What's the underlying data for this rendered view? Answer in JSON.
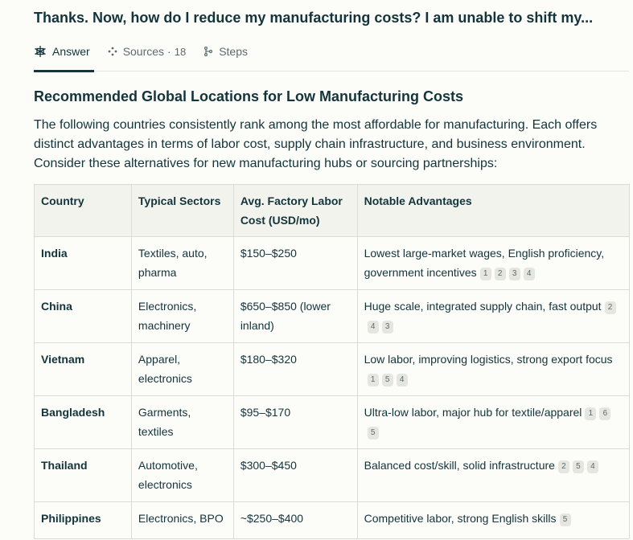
{
  "question": "Thanks. Now, how do I reduce my manufacturing costs? I am unable to shift my...",
  "tabs": {
    "answer": "Answer",
    "sources": "Sources",
    "sources_count": "18",
    "steps": "Steps"
  },
  "heading": "Recommended Global Locations for Low Manufacturing Costs",
  "intro": "The following countries consistently rank among the most affordable for manufacturing. Each offers distinct advantages in terms of labor cost, supply chain infrastructure, and business environment. Consider these alternatives for new manufacturing hubs or sourcing partnerships:",
  "table": {
    "headers": [
      "Country",
      "Typical Sectors",
      "Avg. Factory Labor Cost (USD/mo)",
      "Notable Advantages"
    ],
    "rows": [
      {
        "country": "India",
        "sectors": "Textiles, auto, pharma",
        "cost": "$150–$250",
        "advantages": "Lowest large-market wages, English proficiency, government incentives",
        "cites": [
          "1",
          "2",
          "3",
          "4"
        ]
      },
      {
        "country": "China",
        "sectors": "Electronics, machinery",
        "cost": "$650–$850 (lower inland)",
        "advantages": "Huge scale, integrated supply chain, fast output",
        "cites": [
          "2",
          "4",
          "3"
        ]
      },
      {
        "country": "Vietnam",
        "sectors": "Apparel, electronics",
        "cost": "$180–$320",
        "advantages": "Low labor, improving logistics, strong export focus",
        "cites": [
          "1",
          "5",
          "4"
        ]
      },
      {
        "country": "Bangladesh",
        "sectors": "Garments, textiles",
        "cost": "$95–$170",
        "advantages": "Ultra-low labor, major hub for textile/apparel",
        "cites": [
          "1",
          "6",
          "5"
        ]
      },
      {
        "country": "Thailand",
        "sectors": "Automotive, electronics",
        "cost": "$300–$450",
        "advantages": "Balanced cost/skill, solid infrastructure",
        "cites": [
          "2",
          "5",
          "4"
        ]
      },
      {
        "country": "Philippines",
        "sectors": "Electronics, BPO",
        "cost": "~$250–$400",
        "advantages": "Competitive labor, strong English skills",
        "cites": [
          "5"
        ]
      }
    ]
  }
}
